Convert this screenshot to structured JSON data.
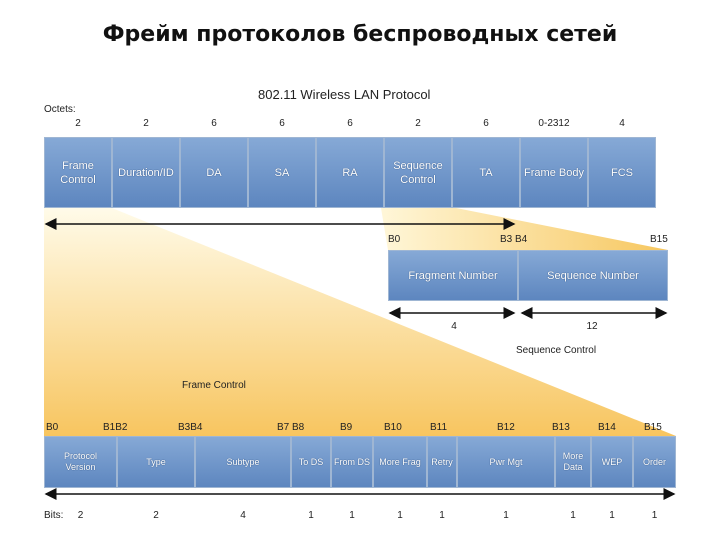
{
  "title": "Фрейм протоколов беспроводных сетей",
  "diagram": {
    "heading": "802.11 Wireless LAN Protocol",
    "octets_label": "Octets:",
    "frame": {
      "sizes": [
        "2",
        "2",
        "6",
        "6",
        "6",
        "2",
        "6",
        "0-2312",
        "4"
      ],
      "fields": [
        "Frame Control",
        "Duration/ID",
        "DA",
        "SA",
        "RA",
        "Sequence Control",
        "TA",
        "Frame Body",
        "FCS"
      ]
    },
    "seq": {
      "bits_left": "B0",
      "bits_mid": "B3 B4",
      "bits_right": "B15",
      "fields": [
        "Fragment Number",
        "Sequence Number"
      ],
      "sizes": [
        "4",
        "12"
      ],
      "caption": "Sequence Control"
    },
    "fc": {
      "caption": "Frame Control",
      "bit_labels": [
        "B0",
        "B1B2",
        "B3B4",
        "B7 B8",
        "B9",
        "B10",
        "B11",
        "B12",
        "B13",
        "B14",
        "B15"
      ],
      "fields": [
        "Protocol Version",
        "Type",
        "Subtype",
        "To DS",
        "From DS",
        "More Frag",
        "Retry",
        "Pwr Mgt",
        "More Data",
        "WEP",
        "Order"
      ],
      "bits_label": "Bits:",
      "sizes": [
        "2",
        "2",
        "4",
        "1",
        "1",
        "1",
        "1",
        "1",
        "1",
        "1",
        "1"
      ]
    }
  }
}
